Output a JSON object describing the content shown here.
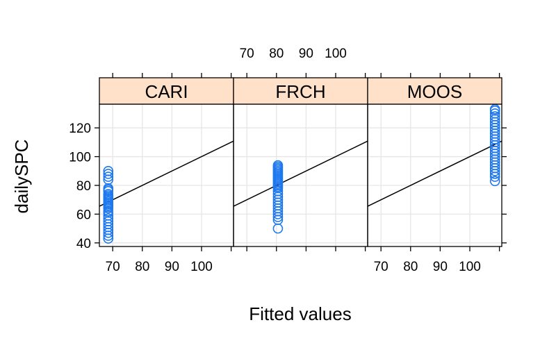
{
  "chart_data": {
    "type": "scatter",
    "title": "",
    "xlabel": "Fitted values",
    "ylabel": "dailySPC",
    "xlim": [
      65.5,
      110.8
    ],
    "ylim": [
      37.5,
      136.5
    ],
    "xticks": [
      70,
      80,
      90,
      100
    ],
    "yticks": [
      40,
      60,
      80,
      100,
      120
    ],
    "grid": true,
    "point_color": "#1E78F0",
    "line_color": "#000000",
    "strip_color": "#FFE0C8",
    "reference_line": {
      "slope": 1,
      "intercept": 0
    },
    "panels": [
      {
        "name": "CARI",
        "fitted": 68.5,
        "values": [
          43,
          45,
          47,
          49,
          51,
          53,
          55,
          57,
          59,
          61,
          62,
          64,
          65,
          66,
          67,
          68,
          69,
          70,
          71,
          72,
          73,
          74,
          76,
          77,
          78,
          84,
          86,
          88,
          90
        ]
      },
      {
        "name": "FRCH",
        "fitted": 80.5,
        "values": [
          50,
          56,
          58,
          60,
          62,
          64,
          66,
          68,
          70,
          72,
          74,
          76,
          78,
          79,
          80,
          81,
          82,
          83,
          84,
          85,
          86,
          87,
          88,
          89,
          90,
          91,
          92,
          93,
          94
        ]
      },
      {
        "name": "MOOS",
        "fitted": 108.5,
        "values": [
          83,
          86,
          88,
          90,
          92,
          94,
          96,
          98,
          100,
          102,
          104,
          106,
          108,
          110,
          112,
          114,
          116,
          118,
          120,
          122,
          124,
          126,
          128,
          130,
          132,
          133
        ]
      }
    ]
  }
}
